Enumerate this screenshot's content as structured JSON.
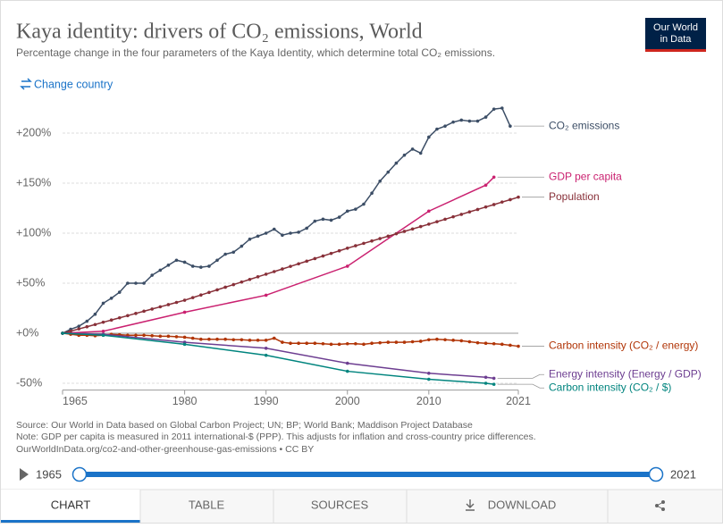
{
  "chart_data": {
    "type": "line",
    "title": "Kaya identity: drivers of CO₂ emissions, World",
    "subtitle": "Percentage change in the four parameters of the Kaya Identity, which determine total CO₂ emissions.",
    "xlim": [
      1965,
      2021
    ],
    "xticks": [
      1965,
      1980,
      1990,
      2000,
      2010,
      2021
    ],
    "ylim": [
      -55,
      230
    ],
    "yticks": [
      {
        "value": -50,
        "label": "-50%"
      },
      {
        "value": 0,
        "label": "+0%"
      },
      {
        "value": 50,
        "label": "+50%"
      },
      {
        "value": 100,
        "label": "+100%"
      },
      {
        "value": 150,
        "label": "+150%"
      },
      {
        "value": 200,
        "label": "+200%"
      }
    ],
    "grid": true,
    "series": [
      {
        "name": "CO₂ emissions",
        "color": "#3c4e66",
        "x": [
          1965,
          1966,
          1967,
          1968,
          1969,
          1970,
          1971,
          1972,
          1973,
          1974,
          1975,
          1976,
          1977,
          1978,
          1979,
          1980,
          1981,
          1982,
          1983,
          1984,
          1985,
          1986,
          1987,
          1988,
          1989,
          1990,
          1991,
          1992,
          1993,
          1994,
          1995,
          1996,
          1997,
          1998,
          1999,
          2000,
          2001,
          2002,
          2003,
          2004,
          2005,
          2006,
          2007,
          2008,
          2009,
          2010,
          2011,
          2012,
          2013,
          2014,
          2015,
          2016,
          2017,
          2018,
          2019,
          2020
        ],
        "values": [
          0,
          4,
          7,
          12,
          19,
          30,
          35,
          41,
          50,
          50,
          50,
          58,
          63,
          68,
          73,
          71,
          67,
          66,
          67,
          73,
          79,
          81,
          87,
          94,
          97,
          100,
          104,
          98,
          100,
          101,
          105,
          112,
          114,
          113,
          116,
          122,
          124,
          129,
          140,
          152,
          161,
          170,
          178,
          184,
          180,
          196,
          204,
          207,
          211,
          213,
          212,
          212,
          216,
          224,
          225,
          207
        ]
      },
      {
        "name": "GDP per capita",
        "color": "#ca2170",
        "x": [
          1965,
          1970,
          1980,
          1990,
          2000,
          2010,
          2017,
          2018
        ],
        "values": [
          0,
          2,
          21,
          38,
          67,
          122,
          148,
          156
        ]
      },
      {
        "name": "Population",
        "color": "#883039",
        "x": [
          1965,
          1966,
          1967,
          1968,
          1969,
          1970,
          1971,
          1972,
          1973,
          1974,
          1975,
          1976,
          1977,
          1978,
          1979,
          1980,
          1981,
          1982,
          1983,
          1984,
          1985,
          1986,
          1987,
          1988,
          1989,
          1990,
          1991,
          1992,
          1993,
          1994,
          1995,
          1996,
          1997,
          1998,
          1999,
          2000,
          2001,
          2002,
          2003,
          2004,
          2005,
          2006,
          2007,
          2008,
          2009,
          2010,
          2011,
          2012,
          2013,
          2014,
          2015,
          2016,
          2017,
          2018,
          2019,
          2020,
          2021
        ],
        "values": [
          0,
          2.1,
          4.3,
          6.5,
          8.7,
          11,
          13.2,
          15.4,
          17.6,
          19.8,
          22,
          24.2,
          26.4,
          28.6,
          30.8,
          33,
          35.6,
          38.2,
          40.8,
          43.4,
          46,
          48.6,
          51.2,
          53.8,
          56.4,
          59,
          61.6,
          64.2,
          66.8,
          69.4,
          72,
          74.6,
          77.2,
          79.8,
          82.4,
          85,
          87.4,
          89.8,
          92.2,
          94.6,
          97,
          99.4,
          101.8,
          104.2,
          106.6,
          109,
          111.5,
          113.9,
          116.4,
          118.8,
          121.3,
          123.7,
          126.2,
          128.6,
          131.1,
          133.5,
          136
        ]
      },
      {
        "name": "Carbon intensity (CO₂ / energy)",
        "color": "#b13507",
        "x": [
          1965,
          1966,
          1967,
          1968,
          1969,
          1970,
          1971,
          1972,
          1973,
          1974,
          1975,
          1976,
          1977,
          1978,
          1979,
          1980,
          1981,
          1982,
          1983,
          1984,
          1985,
          1986,
          1987,
          1988,
          1989,
          1990,
          1991,
          1992,
          1993,
          1994,
          1995,
          1996,
          1997,
          1998,
          1999,
          2000,
          2001,
          2002,
          2003,
          2004,
          2005,
          2006,
          2007,
          2008,
          2009,
          2010,
          2011,
          2012,
          2013,
          2014,
          2015,
          2016,
          2017,
          2018,
          2019,
          2020,
          2021
        ],
        "values": [
          0,
          -1,
          -2,
          -2,
          -2.5,
          -2,
          -1,
          -1.5,
          -2,
          -2,
          -2,
          -2.5,
          -3,
          -3,
          -3.5,
          -4,
          -5,
          -6,
          -6,
          -6,
          -6,
          -6.5,
          -6.5,
          -7,
          -7,
          -7,
          -5,
          -9,
          -10,
          -10,
          -10,
          -10,
          -10.5,
          -11,
          -11,
          -10.5,
          -10.5,
          -11,
          -10,
          -9.5,
          -9,
          -9,
          -9,
          -8.5,
          -8,
          -6.5,
          -6,
          -6.5,
          -7,
          -7.5,
          -8.5,
          -9.5,
          -10,
          -10.5,
          -11,
          -12,
          -13
        ]
      },
      {
        "name": "Energy intensity (Energy / GDP)",
        "color": "#6d3e91",
        "x": [
          1965,
          1970,
          1980,
          1990,
          2000,
          2010,
          2017,
          2018
        ],
        "values": [
          0,
          -1,
          -9,
          -15,
          -30,
          -40,
          -44,
          -45
        ]
      },
      {
        "name": "Carbon intensity (CO₂ / $)",
        "color": "#00847e",
        "x": [
          1965,
          1970,
          1980,
          1990,
          2000,
          2010,
          2017,
          2018
        ],
        "values": [
          0,
          -2,
          -11,
          -22,
          -38,
          -46,
          -50,
          -51
        ]
      }
    ]
  },
  "page": {
    "logo": [
      "Our World",
      "in Data"
    ],
    "change_country": "Change country",
    "source": "Source: Our World in Data based on Global Carbon Project; UN; BP; World Bank; Maddison Project Database",
    "note": "Note: GDP per capita is measured in 2011 international-$ (PPP). This adjusts for inflation and cross-country price differences.",
    "url": "OurWorldInData.org/co2-and-other-greenhouse-gas-emissions • CC BY",
    "timeline": {
      "start": "1965",
      "end": "2021"
    },
    "tabs": [
      "CHART",
      "TABLE",
      "SOURCES",
      "DOWNLOAD"
    ]
  }
}
